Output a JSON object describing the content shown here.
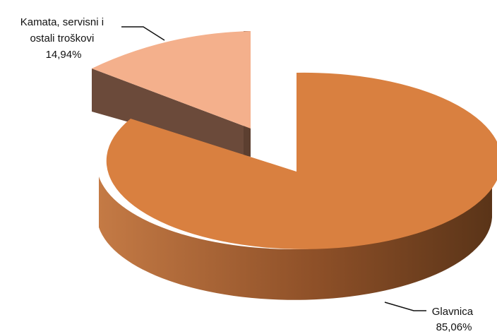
{
  "chart_data": {
    "type": "pie",
    "style": "3d-exploded",
    "title": "",
    "slices": [
      {
        "label_lines": [
          "Kamata, servisni i",
          "ostali troškovi"
        ],
        "value": 14.94,
        "value_label": "14,94%",
        "color": "#F4B08C",
        "side_color": "#6B4A3A"
      },
      {
        "label_lines": [
          "Glavnica"
        ],
        "value": 85.06,
        "value_label": "85,06%",
        "color": "#D98040",
        "side_color": "#A0582A"
      }
    ]
  }
}
